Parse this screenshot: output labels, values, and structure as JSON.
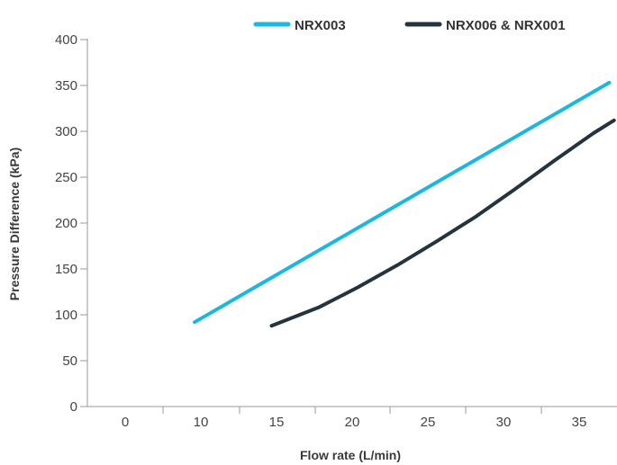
{
  "chart_data": {
    "type": "line",
    "xlabel": "Flow rate (L/min)",
    "ylabel": "Pressure Difference (kPa)",
    "x_ticks": [
      "0",
      "10",
      "15",
      "20",
      "25",
      "30",
      "35"
    ],
    "ylim": [
      0,
      400
    ],
    "y_ticks": [
      0,
      50,
      100,
      150,
      200,
      250,
      300,
      350,
      400
    ],
    "grid": false,
    "legend_position": "top-right",
    "series": [
      {
        "name": "NRX003",
        "color": "#1ab8e0",
        "points": [
          [
            9.6,
            92
          ],
          [
            36.0,
            353
          ]
        ]
      },
      {
        "name": "NRX006 & NRX001",
        "color": "#23343f",
        "points": [
          [
            14.5,
            88
          ],
          [
            17.5,
            108
          ],
          [
            20.0,
            130
          ],
          [
            22.5,
            154
          ],
          [
            25.0,
            180
          ],
          [
            27.5,
            207
          ],
          [
            30.0,
            237
          ],
          [
            32.5,
            268
          ],
          [
            35.0,
            298
          ],
          [
            36.3,
            312
          ]
        ]
      }
    ]
  }
}
